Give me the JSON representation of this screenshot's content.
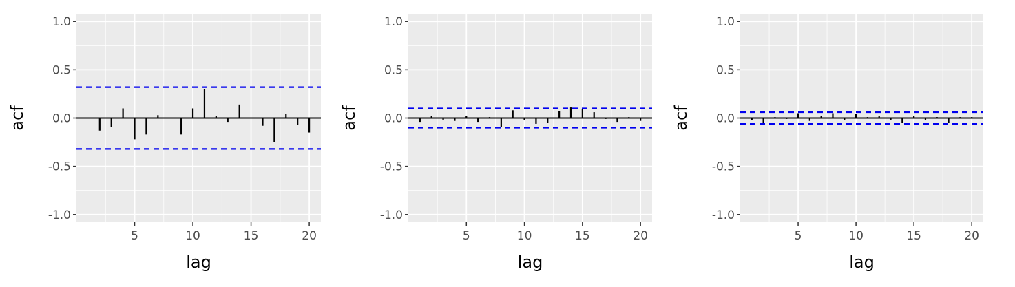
{
  "chart_data": [
    {
      "type": "bar",
      "xlabel": "lag",
      "ylabel": "acf",
      "xlim": [
        0,
        21
      ],
      "ylim": [
        -1.08,
        1.08
      ],
      "x_ticks": [
        5,
        10,
        15,
        20
      ],
      "y_ticks": [
        -1.0,
        -0.5,
        0.0,
        0.5,
        1.0
      ],
      "y_tick_labels": [
        "-1.0",
        "-0.5",
        "0.0",
        "0.5",
        "1.0"
      ],
      "grid": true,
      "confidence_bound": 0.32,
      "lags": [
        1,
        2,
        3,
        4,
        5,
        6,
        7,
        8,
        9,
        10,
        11,
        12,
        13,
        14,
        15,
        16,
        17,
        18,
        19,
        20
      ],
      "acf": [
        0.0,
        -0.13,
        -0.09,
        0.1,
        -0.22,
        -0.17,
        0.03,
        0.0,
        -0.17,
        0.1,
        0.3,
        0.02,
        -0.04,
        0.14,
        0.0,
        -0.08,
        -0.25,
        0.04,
        -0.07,
        -0.15
      ],
      "colors": {
        "bar": "#000000",
        "bound": "#0000ee",
        "panel": "#ebebeb",
        "grid": "#ffffff",
        "zero_line": "#000000"
      }
    },
    {
      "type": "bar",
      "xlabel": "lag",
      "ylabel": "acf",
      "xlim": [
        0,
        21
      ],
      "ylim": [
        -1.08,
        1.08
      ],
      "x_ticks": [
        5,
        10,
        15,
        20
      ],
      "y_ticks": [
        -1.0,
        -0.5,
        0.0,
        0.5,
        1.0
      ],
      "y_tick_labels": [
        "-1.0",
        "-0.5",
        "0.0",
        "0.5",
        "1.0"
      ],
      "grid": true,
      "confidence_bound": 0.1,
      "lags": [
        1,
        2,
        3,
        4,
        5,
        6,
        7,
        8,
        9,
        10,
        11,
        12,
        13,
        14,
        15,
        16,
        17,
        18,
        19,
        20
      ],
      "acf": [
        -0.04,
        0.02,
        -0.02,
        -0.03,
        0.02,
        -0.04,
        0.01,
        -0.09,
        0.08,
        -0.02,
        -0.06,
        -0.05,
        0.07,
        0.11,
        0.09,
        0.06,
        -0.01,
        -0.04,
        0.01,
        -0.03
      ],
      "colors": {
        "bar": "#000000",
        "bound": "#0000ee",
        "panel": "#ebebeb",
        "grid": "#ffffff",
        "zero_line": "#000000"
      }
    },
    {
      "type": "bar",
      "xlabel": "lag",
      "ylabel": "acf",
      "xlim": [
        0,
        21
      ],
      "ylim": [
        -1.08,
        1.08
      ],
      "x_ticks": [
        5,
        10,
        15,
        20
      ],
      "y_ticks": [
        -1.0,
        -0.5,
        0.0,
        0.5,
        1.0
      ],
      "y_tick_labels": [
        "-1.0",
        "-0.5",
        "0.0",
        "0.5",
        "1.0"
      ],
      "grid": true,
      "confidence_bound": 0.06,
      "lags": [
        1,
        2,
        3,
        4,
        5,
        6,
        7,
        8,
        9,
        10,
        11,
        12,
        13,
        14,
        15,
        16,
        17,
        18,
        19,
        20
      ],
      "acf": [
        -0.02,
        -0.05,
        0.01,
        -0.01,
        0.05,
        -0.03,
        0.02,
        0.05,
        -0.02,
        0.04,
        0.01,
        0.02,
        -0.02,
        -0.05,
        0.02,
        -0.02,
        0.01,
        -0.05,
        0.01,
        0.01
      ],
      "colors": {
        "bar": "#000000",
        "bound": "#0000ee",
        "panel": "#ebebeb",
        "grid": "#ffffff",
        "zero_line": "#000000"
      }
    }
  ]
}
